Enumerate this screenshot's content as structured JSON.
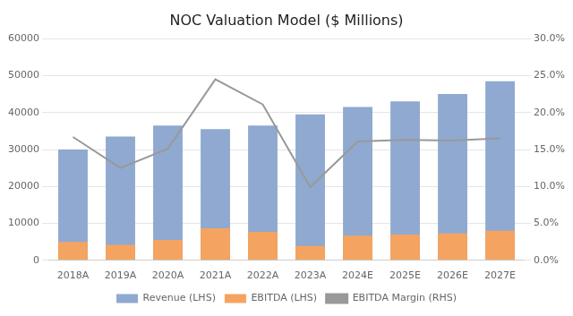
{
  "chart_data": {
    "type": "bar",
    "title": "NOC Valuation Model ($ Millions)",
    "categories": [
      "2018A",
      "2019A",
      "2020A",
      "2021A",
      "2022A",
      "2023A",
      "2024E",
      "2025E",
      "2026E",
      "2027E"
    ],
    "series": [
      {
        "name": "Revenue (LHS)",
        "color": "#8FA9D0",
        "values": [
          30000,
          33500,
          36500,
          35500,
          36500,
          39500,
          41500,
          43000,
          45000,
          48500
        ]
      },
      {
        "name": "EBITDA (LHS)",
        "color": "#F4A460",
        "values": [
          5000,
          4200,
          5500,
          8700,
          7700,
          3900,
          6700,
          7000,
          7300,
          8000
        ]
      },
      {
        "name": "EBITDA Margin (RHS)",
        "type": "line",
        "axis": "y2",
        "color": "#999999",
        "values": [
          0.167,
          0.125,
          0.151,
          0.245,
          0.211,
          0.099,
          0.161,
          0.163,
          0.162,
          0.165
        ]
      }
    ],
    "ylim": [
      0,
      60000
    ],
    "yticks": [
      0,
      10000,
      20000,
      30000,
      40000,
      50000,
      60000
    ],
    "y2lim": [
      0.0,
      0.3
    ],
    "y2ticks": [
      {
        "value": 0.0,
        "label": "0.0%"
      },
      {
        "value": 0.05,
        "label": "5.0%"
      },
      {
        "value": 0.1,
        "label": "10.0%"
      },
      {
        "value": 0.15,
        "label": "15.0%"
      },
      {
        "value": 0.2,
        "label": "20.0%"
      },
      {
        "value": 0.25,
        "label": "25.0%"
      },
      {
        "value": 0.3,
        "label": "30.0%"
      }
    ],
    "grid": true,
    "legend": "bottom"
  }
}
